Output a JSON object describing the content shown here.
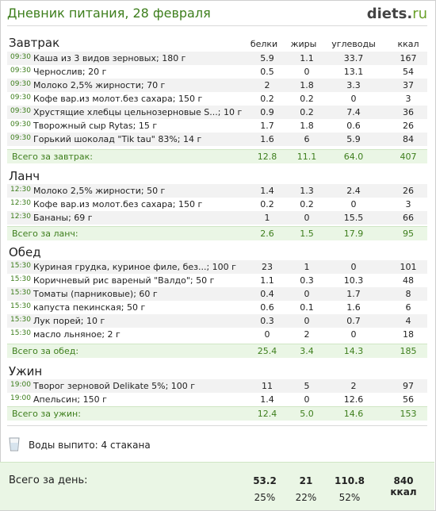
{
  "title": "Дневник питания, 28 февраля",
  "logo": {
    "brand": "diets",
    "dot": ".",
    "tld": "ru"
  },
  "columns": [
    "белки",
    "жиры",
    "углеводы",
    "ккал"
  ],
  "meals": [
    {
      "name": "Завтрак",
      "items": [
        {
          "time": "09:30",
          "name": "Каша из 3 видов зерновых; 180 г",
          "p": "5.9",
          "f": "1.1",
          "c": "33.7",
          "k": "167"
        },
        {
          "time": "09:30",
          "name": "Чернослив; 20 г",
          "p": "0.5",
          "f": "0",
          "c": "13.1",
          "k": "54"
        },
        {
          "time": "09:30",
          "name": "Молоко 2,5% жирности; 70 г",
          "p": "2",
          "f": "1.8",
          "c": "3.3",
          "k": "37"
        },
        {
          "time": "09:30",
          "name": "Кофе вар.из молот.без сахара; 150 г",
          "p": "0.2",
          "f": "0.2",
          "c": "0",
          "k": "3"
        },
        {
          "time": "09:30",
          "name": "Хрустящие хлебцы цельнозерновые S...; 10 г",
          "p": "0.9",
          "f": "0.2",
          "c": "7.4",
          "k": "36"
        },
        {
          "time": "09:30",
          "name": "Творожный сыр Rytas; 15 г",
          "p": "1.7",
          "f": "1.8",
          "c": "0.6",
          "k": "26"
        },
        {
          "time": "09:30",
          "name": "Горький шоколад \"Tik tau\" 83%; 14 г",
          "p": "1.6",
          "f": "6",
          "c": "5.9",
          "k": "84"
        }
      ],
      "total": {
        "label": "Всего за завтрак:",
        "p": "12.8",
        "f": "11.1",
        "c": "64.0",
        "k": "407"
      }
    },
    {
      "name": "Ланч",
      "items": [
        {
          "time": "12:30",
          "name": "Молоко 2,5% жирности; 50 г",
          "p": "1.4",
          "f": "1.3",
          "c": "2.4",
          "k": "26"
        },
        {
          "time": "12:30",
          "name": "Кофе вар.из молот.без сахара; 150 г",
          "p": "0.2",
          "f": "0.2",
          "c": "0",
          "k": "3"
        },
        {
          "time": "12:30",
          "name": "Бананы; 69 г",
          "p": "1",
          "f": "0",
          "c": "15.5",
          "k": "66"
        }
      ],
      "total": {
        "label": "Всего за ланч:",
        "p": "2.6",
        "f": "1.5",
        "c": "17.9",
        "k": "95"
      }
    },
    {
      "name": "Обед",
      "items": [
        {
          "time": "15:30",
          "name": "Куриная грудка, куриное филе, без...; 100 г",
          "p": "23",
          "f": "1",
          "c": "0",
          "k": "101"
        },
        {
          "time": "15:30",
          "name": "Коричневый рис вареный \"Валдо\"; 50 г",
          "p": "1.1",
          "f": "0.3",
          "c": "10.3",
          "k": "48"
        },
        {
          "time": "15:30",
          "name": "Томаты (парниковые); 60 г",
          "p": "0.4",
          "f": "0",
          "c": "1.7",
          "k": "8"
        },
        {
          "time": "15:30",
          "name": "капуста пекинская; 50 г",
          "p": "0.6",
          "f": "0.1",
          "c": "1.6",
          "k": "6"
        },
        {
          "time": "15:30",
          "name": "Лук порей; 10 г",
          "p": "0.3",
          "f": "0",
          "c": "0.7",
          "k": "4"
        },
        {
          "time": "15:30",
          "name": "масло льняное; 2 г",
          "p": "0",
          "f": "2",
          "c": "0",
          "k": "18"
        }
      ],
      "total": {
        "label": "Всего за обед:",
        "p": "25.4",
        "f": "3.4",
        "c": "14.3",
        "k": "185"
      }
    },
    {
      "name": "Ужин",
      "items": [
        {
          "time": "19:00",
          "name": "Творог зерновой Delikate 5%; 100 г",
          "p": "11",
          "f": "5",
          "c": "2",
          "k": "97"
        },
        {
          "time": "19:00",
          "name": "Апельсин; 150 г",
          "p": "1.4",
          "f": "0",
          "c": "12.6",
          "k": "56"
        }
      ],
      "total": {
        "label": "Всего за ужин:",
        "p": "12.4",
        "f": "5.0",
        "c": "14.6",
        "k": "153"
      }
    }
  ],
  "water": {
    "text": "Воды выпито: 4 стакана",
    "icon": "glass-icon"
  },
  "day_total": {
    "label": "Всего за день:",
    "p": "53.2",
    "f": "21",
    "c": "110.8",
    "k": "840 ккал",
    "pp": "25%",
    "fp": "22%",
    "cp": "52%"
  },
  "colors": {
    "accent": "#3d7e1c",
    "total_bg": "#eaf6e5",
    "row_alt": "#f2f2f2"
  }
}
